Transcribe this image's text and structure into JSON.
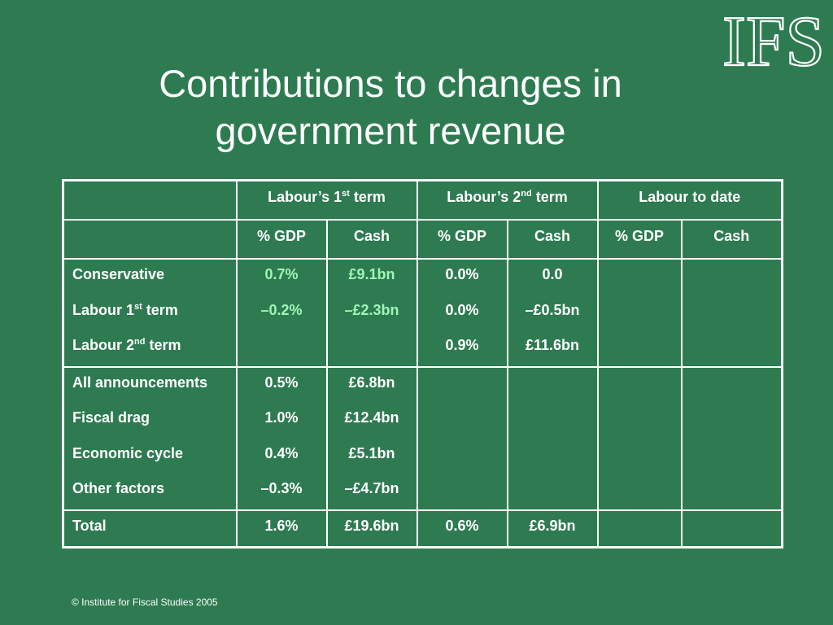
{
  "logo": {
    "text": "IFS"
  },
  "title": {
    "line1": "Contributions to changes in",
    "line2": "government revenue"
  },
  "table": {
    "headers": {
      "term1_base": "Labour’s 1",
      "term1_sup": "st",
      "term1_tail": " term",
      "term2_base": "Labour’s 2",
      "term2_sup": "nd",
      "term2_tail": " term",
      "to_date": "Labour to date"
    },
    "subheaders": {
      "gdp": "% GDP",
      "cash": "Cash"
    },
    "group1": {
      "labels": {
        "conservative": "Conservative",
        "l1_base": "Labour 1",
        "l1_sup": "st",
        "l1_tail": " term",
        "l2_base": "Labour 2",
        "l2_sup": "nd",
        "l2_tail": " term"
      },
      "t1_gdp": [
        "0.7%",
        "–0.2%"
      ],
      "t1_cash": [
        "£9.1bn",
        "–£2.3bn"
      ],
      "t2_gdp": [
        "0.0%",
        "0.0%",
        "0.9%"
      ],
      "t2_cash": [
        "0.0",
        "–£0.5bn",
        "£11.6bn"
      ]
    },
    "group2": {
      "labels": [
        "All announcements",
        "Fiscal drag",
        "Economic cycle",
        "Other factors"
      ],
      "t1_gdp": [
        "0.5%",
        "1.0%",
        "0.4%",
        "–0.3%"
      ],
      "t1_cash": [
        "£6.8bn",
        "£12.4bn",
        "£5.1bn",
        "–£4.7bn"
      ]
    },
    "total": {
      "label": "Total",
      "t1_gdp": "1.6%",
      "t1_cash": "£19.6bn",
      "t2_gdp": "0.6%",
      "t2_cash": "£6.9bn"
    }
  },
  "footer": {
    "copyright": "© Institute for Fiscal Studies 2005"
  },
  "colors": {
    "background": "#2e7b52",
    "text": "#ffffff",
    "highlight": "#9ff5b4"
  }
}
